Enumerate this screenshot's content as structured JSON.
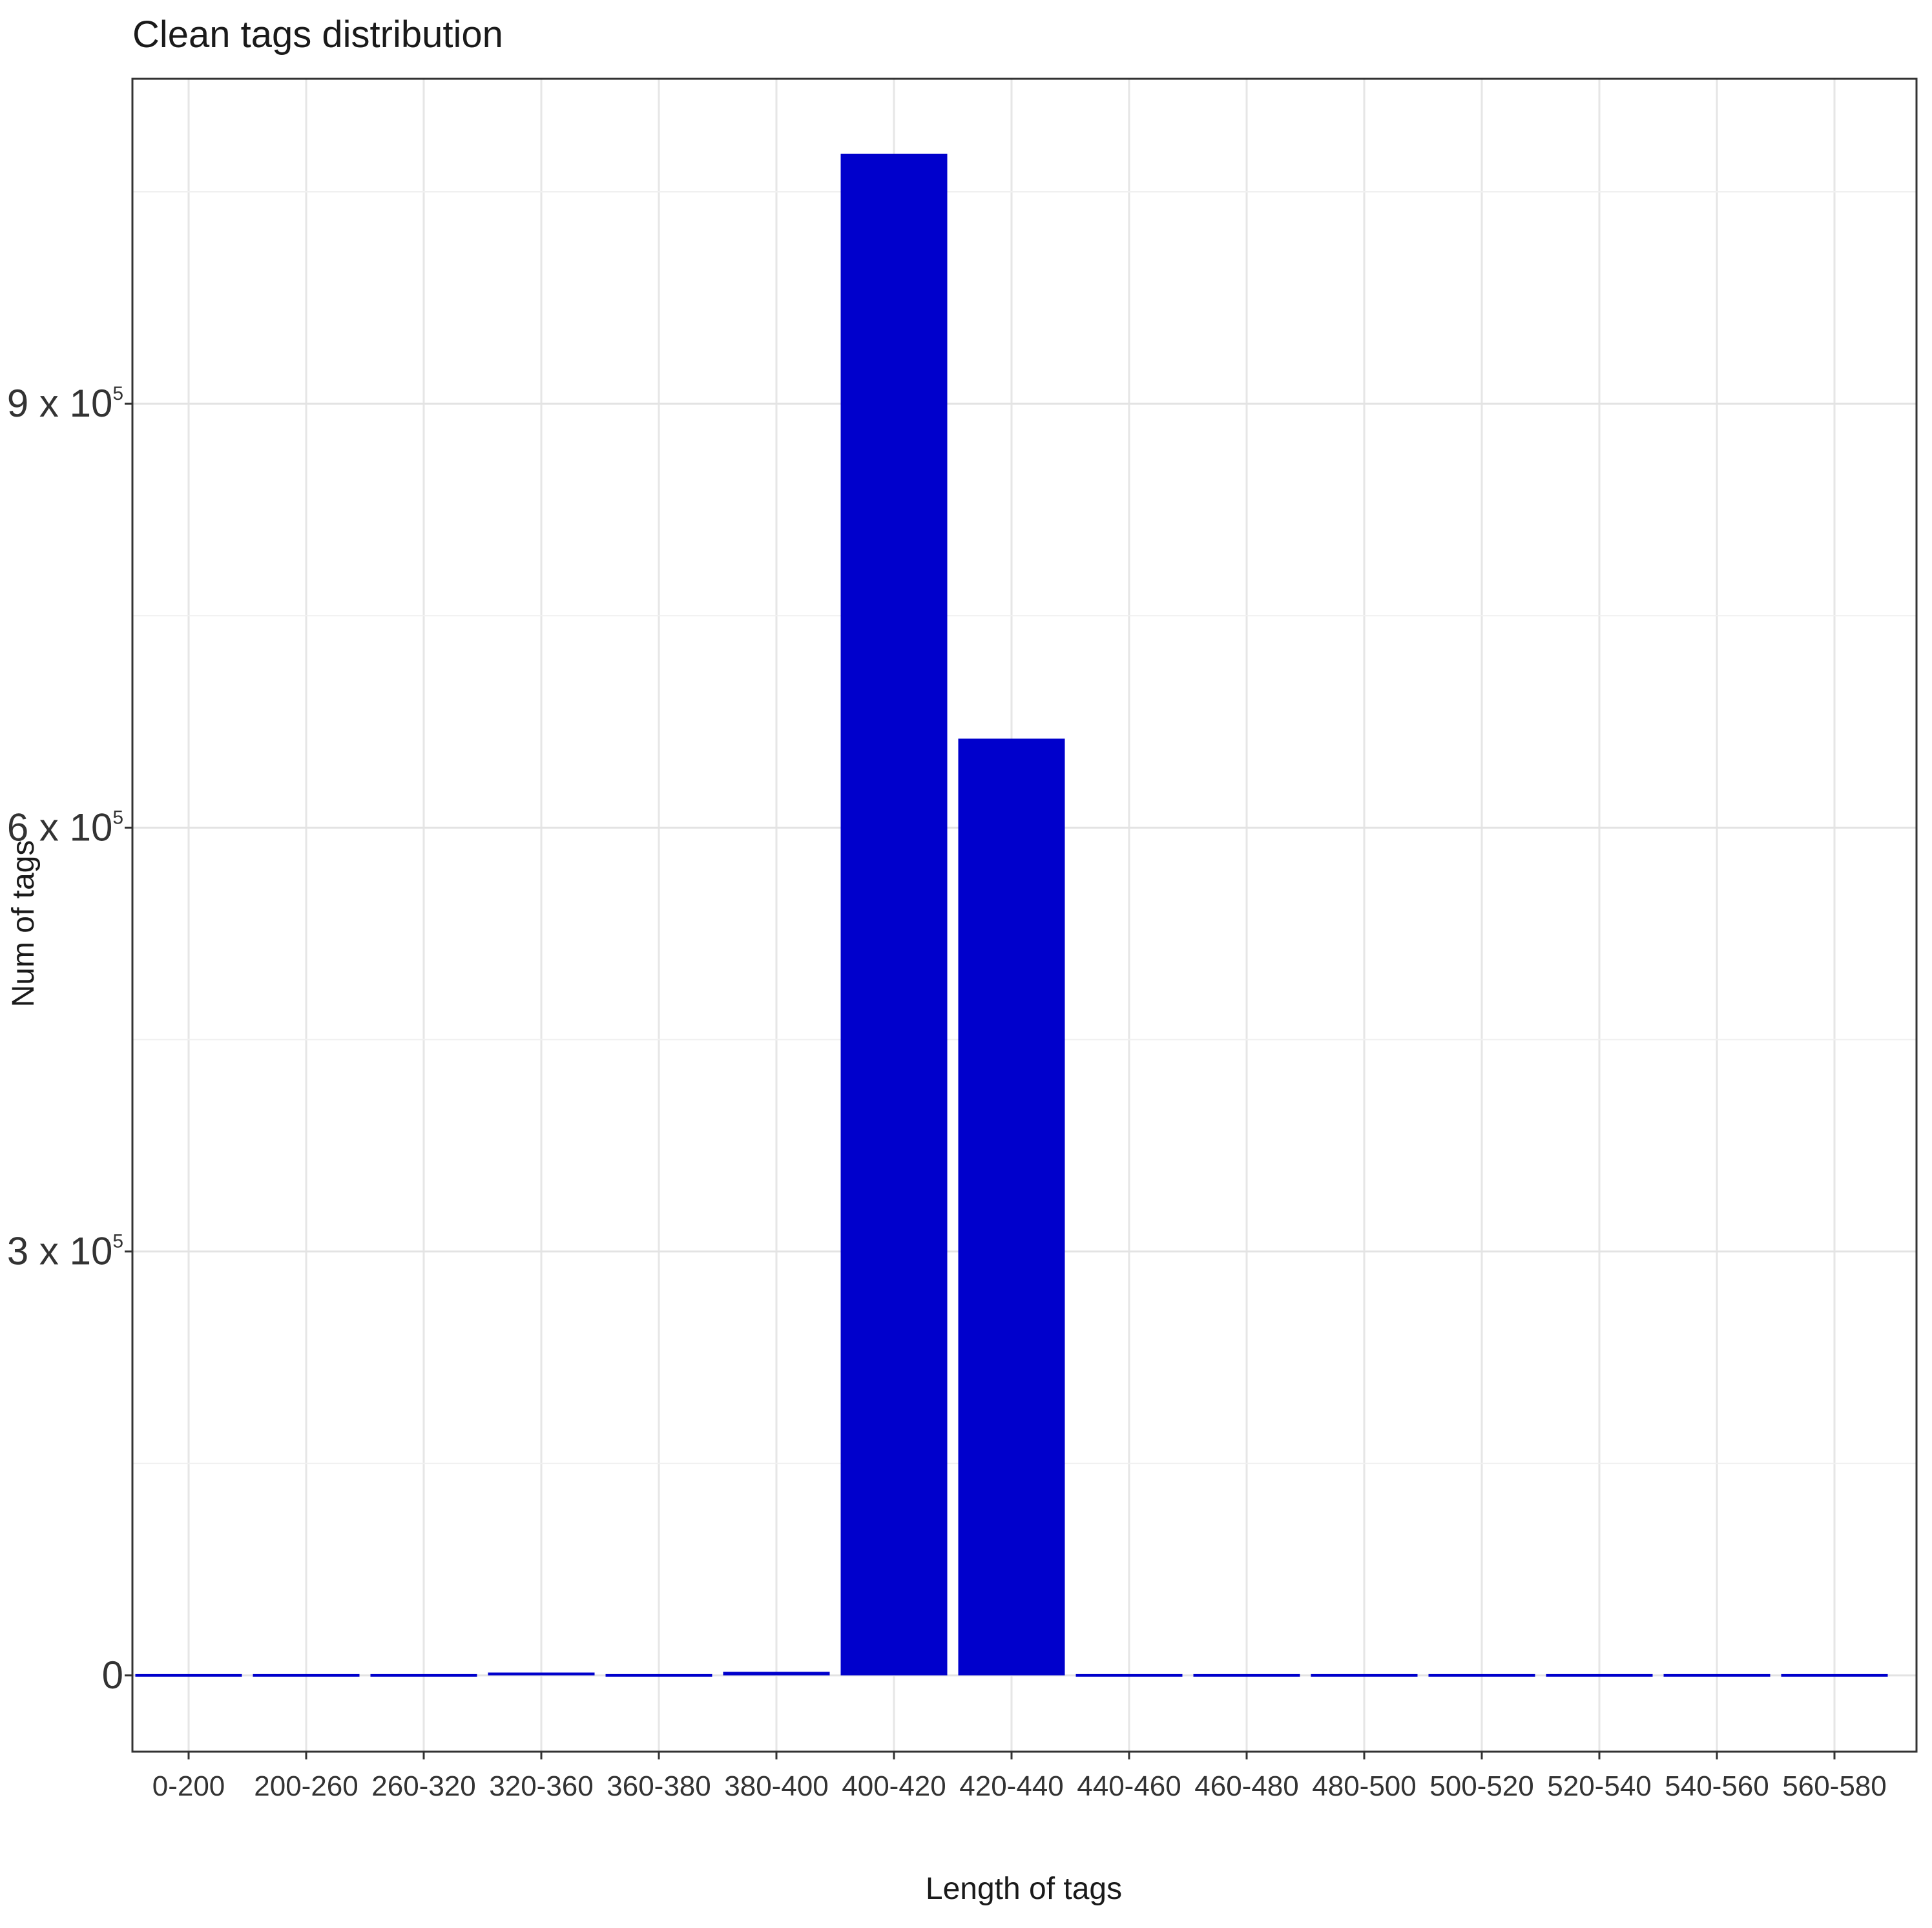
{
  "chart_data": {
    "type": "bar",
    "title": "Clean tags distribution",
    "xlabel": "Length of tags",
    "ylabel": "Num of tags",
    "categories": [
      "0-200",
      "200-260",
      "260-320",
      "320-360",
      "360-380",
      "380-400",
      "400-420",
      "420-440",
      "440-460",
      "460-480",
      "480-500",
      "500-520",
      "520-540",
      "540-560",
      "560-580"
    ],
    "values": [
      300,
      300,
      300,
      2000,
      900,
      2500,
      1077000,
      663000,
      300,
      300,
      300,
      300,
      300,
      300,
      300
    ],
    "ylim": [
      -54000,
      1130000
    ],
    "yticks": [
      {
        "value": 0,
        "label": "0",
        "mantissa": "",
        "exponent": ""
      },
      {
        "value": 300000,
        "label": "3 x 10^5",
        "mantissa": "3 x 10",
        "exponent": "5"
      },
      {
        "value": 600000,
        "label": "6 x 10^5",
        "mantissa": "6 x 10",
        "exponent": "5"
      },
      {
        "value": 900000,
        "label": "9 x 10^5",
        "mantissa": "9 x 10",
        "exponent": "5"
      }
    ],
    "bar_color": "#0000CC",
    "grid": true,
    "legend": "none"
  }
}
